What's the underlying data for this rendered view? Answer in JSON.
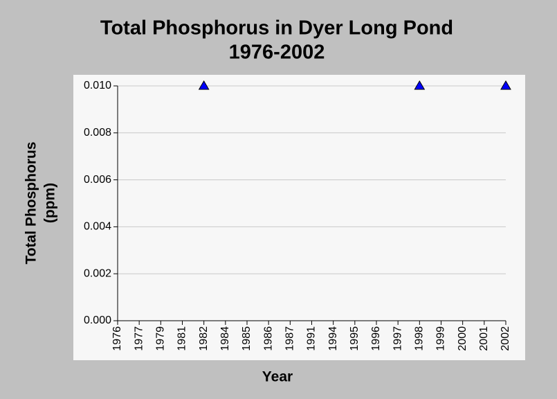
{
  "chart_data": {
    "type": "scatter",
    "title": "Total Phosphorus in Dyer Long Pond",
    "subtitle": "1976-2002",
    "xlabel": "Year",
    "ylabel": [
      "Total Phosphorus",
      "(ppm)"
    ],
    "categories": [
      "1976",
      "1977",
      "1979",
      "1981",
      "1982",
      "1984",
      "1985",
      "1986",
      "1987",
      "1991",
      "1994",
      "1995",
      "1996",
      "1997",
      "1998",
      "1999",
      "2000",
      "2001",
      "2002"
    ],
    "values": [
      null,
      null,
      null,
      null,
      0.01,
      null,
      null,
      null,
      null,
      null,
      null,
      null,
      null,
      null,
      0.01,
      null,
      null,
      null,
      0.01
    ],
    "color": "#0000ff",
    "marker": "triangle",
    "ylim": [
      0,
      0.01
    ],
    "yticks": [
      {
        "value": 0,
        "label": "0.000"
      },
      0.002,
      0.004,
      0.006,
      0.008,
      {
        "value": 0.01,
        "label": "0.010"
      }
    ],
    "grid": true
  }
}
